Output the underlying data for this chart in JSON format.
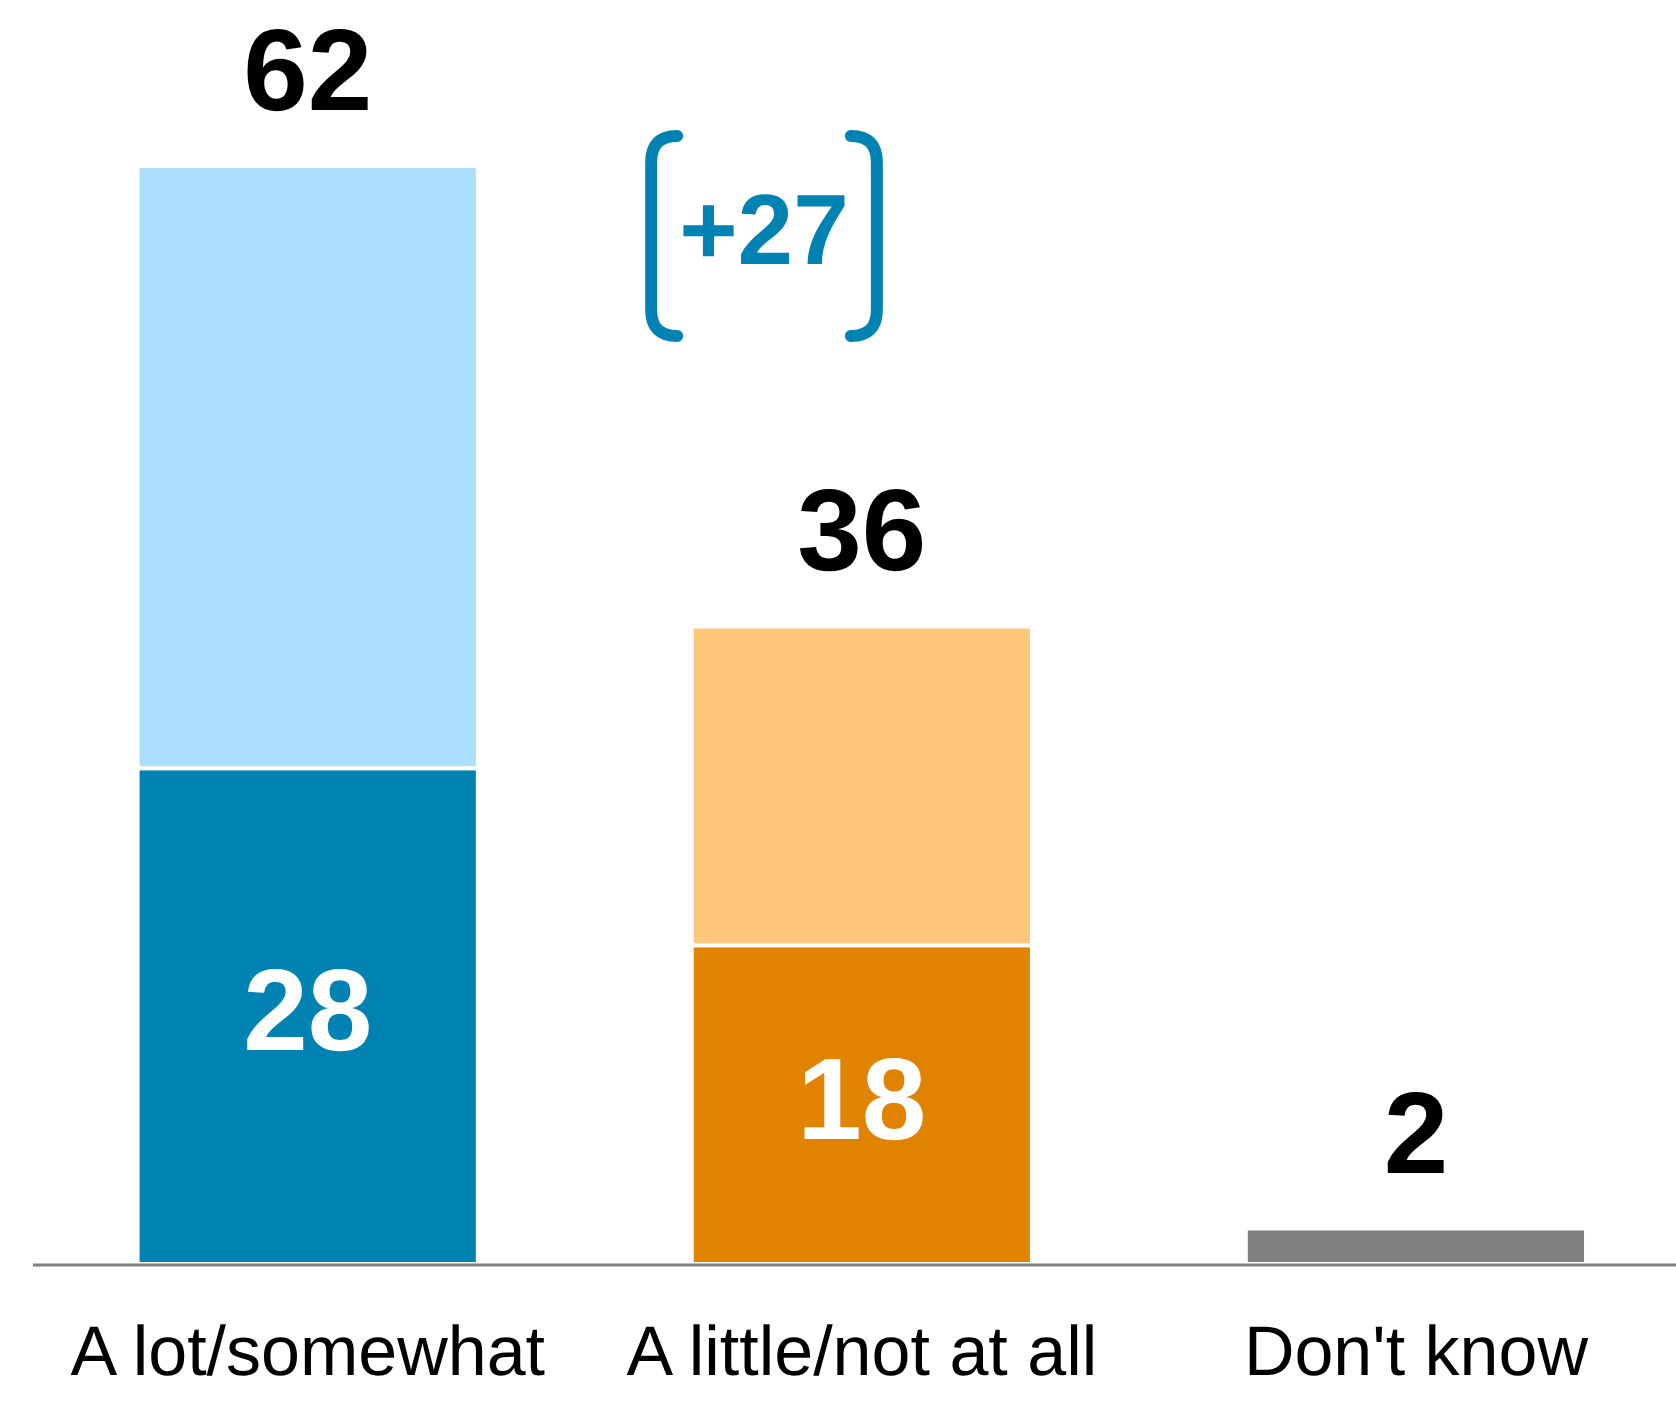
{
  "chart_data": {
    "type": "bar",
    "stacked": true,
    "categories": [
      "A lot/somewhat",
      "A little/not at all",
      "Don't know"
    ],
    "series": [
      {
        "colors": [
          "#0083b3",
          "#e08300",
          "#7f7f7f"
        ],
        "values": [
          28,
          18,
          2
        ],
        "value_labels": [
          "28",
          "18",
          null
        ]
      },
      {
        "colors": [
          "#acdefd",
          "#ffc77a",
          null
        ],
        "values": [
          34,
          18,
          null
        ]
      }
    ],
    "totals": [
      "62",
      "36",
      "2"
    ],
    "annotations": [
      "+27"
    ]
  }
}
